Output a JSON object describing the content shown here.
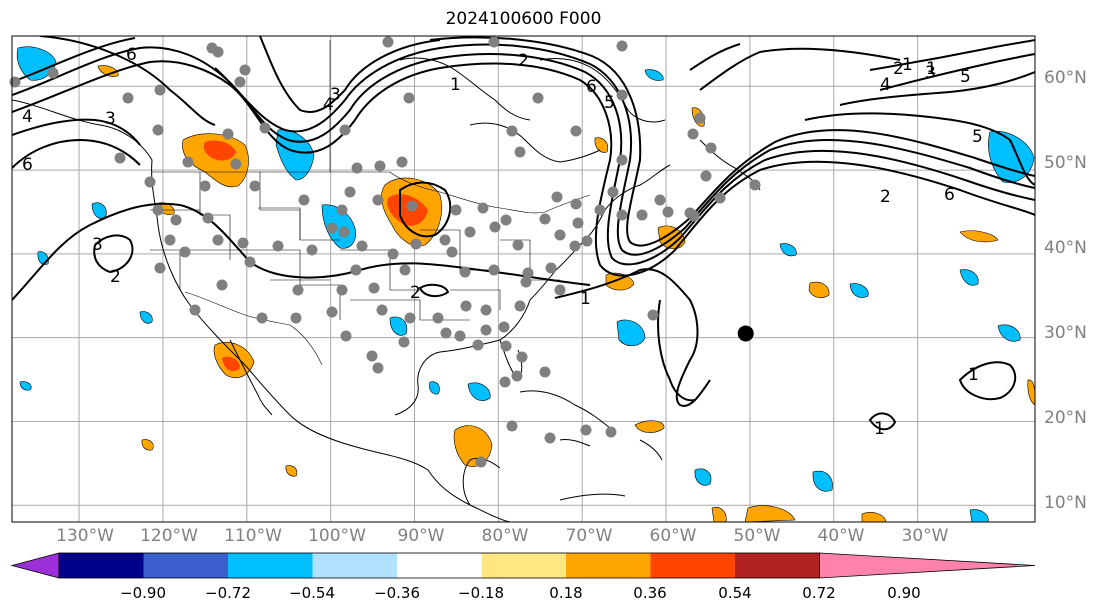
{
  "title": "2024100600 F000",
  "map": {
    "projection": "PlateCarree",
    "lon_range": [
      -138,
      -16
    ],
    "lat_range": [
      8,
      66
    ],
    "lon_ticks": [
      "130°W",
      "120°W",
      "110°W",
      "100°W",
      "90°W",
      "80°W",
      "70°W",
      "60°W",
      "50°W",
      "40°W",
      "30°W"
    ],
    "lat_ticks": [
      "60°N",
      "50°N",
      "40°N",
      "30°N",
      "20°N",
      "10°N"
    ],
    "grid": true,
    "contour_labels": [
      "6",
      "4",
      "3",
      "3",
      "2",
      "1",
      "2",
      "6",
      "5",
      "4",
      "3",
      "2",
      "1",
      "2",
      "1",
      "1",
      "1",
      "1",
      "2",
      "3",
      "4",
      "5",
      "6",
      "5",
      "6",
      "2",
      "2",
      "1",
      "1"
    ],
    "marker": {
      "lon": -50.5,
      "lat": 30.5,
      "color": "#000000"
    },
    "station_color": "#808080"
  },
  "colorbar": {
    "tick_labels": [
      "−0.90",
      "−0.72",
      "−0.54",
      "−0.36",
      "−0.18",
      "0.18",
      "0.36",
      "0.54",
      "0.72",
      "0.90"
    ],
    "colors": [
      "#9b30d9",
      "#00008b",
      "#3a5fcd",
      "#00bfff",
      "#b0e2ff",
      "#ffffff",
      "#ffe680",
      "#ffa500",
      "#ff4500",
      "#b22222",
      "#ff82ab"
    ],
    "extend": "both"
  }
}
